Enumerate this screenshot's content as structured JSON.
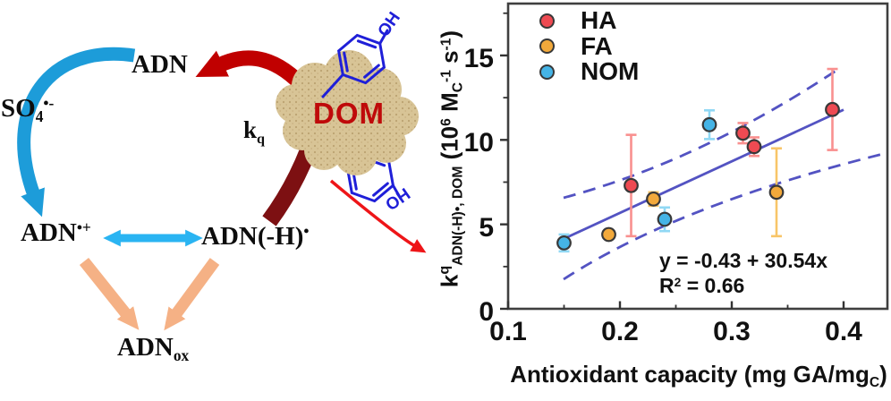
{
  "diagram": {
    "adn": {
      "base": "ADN"
    },
    "so4": {
      "base": "SO",
      "sub": "4",
      "sup": "•-"
    },
    "kq": {
      "base": "k",
      "sub": "q"
    },
    "adn_radical_cation": {
      "base": "ADN",
      "sup": "•+"
    },
    "adn_minus_h": {
      "base": "ADN(-H)",
      "sup": "•"
    },
    "adn_ox": {
      "base": "ADN",
      "sub": "ox"
    },
    "dom": "DOM",
    "oh_top": "OH",
    "oh_bottom": "OH",
    "colors": {
      "cycle_blue": "#1d9cd9",
      "arrow_red": "#c00000",
      "arrow_darkred": "#7d1012",
      "resonance_cyan": "#2ab4f2",
      "decay_orange": "#f5b185",
      "pointer_red": "#ee1518",
      "phenol_blue": "#1f1fd8",
      "dom_cloud_tan": "#d8c496",
      "dom_text_red": "#bf0a0a"
    }
  },
  "chart_data": {
    "type": "scatter",
    "title": "",
    "xlabel_parts": {
      "base": "Antioxidant capacity (mg GA/mg",
      "sub": "C",
      "end": ")"
    },
    "ylabel_parts": {
      "p1": "k",
      "p1_sup": "q",
      "p1_sub": "ADN(-H)•, DOM",
      "p2": " (10",
      "p2_sup": "6",
      "p3": " M",
      "p3_sub": "C",
      "p3_sup": "-1",
      "p4": " s",
      "p4_sup": "-1",
      "p5": ")"
    },
    "xlim": [
      0.1,
      0.44
    ],
    "ylim": [
      0,
      18.1
    ],
    "grid": false,
    "legend_position": "top-left",
    "x_ticks": [
      0.1,
      0.2,
      0.3,
      0.4
    ],
    "x_minor_ticks": [
      0.15,
      0.25,
      0.35
    ],
    "y_ticks": [
      0,
      5,
      10,
      15
    ],
    "y_minor_ticks": [
      2.5,
      7.5,
      12.5,
      17.5
    ],
    "series": [
      {
        "name": "HA",
        "color": "#ee4a52",
        "bar_color": "#f9908f",
        "points": [
          [
            0.21,
            7.3,
            3.0
          ],
          [
            0.31,
            10.4,
            0.6
          ],
          [
            0.32,
            9.6,
            0.55
          ],
          [
            0.39,
            11.8,
            2.4
          ]
        ]
      },
      {
        "name": "FA",
        "color": "#f2a93b",
        "bar_color": "#f8c568",
        "points": [
          [
            0.19,
            4.4,
            0
          ],
          [
            0.23,
            6.5,
            0.4
          ],
          [
            0.34,
            6.9,
            2.6
          ]
        ]
      },
      {
        "name": "NOM",
        "color": "#45b4e6",
        "bar_color": "#90d8f4",
        "points": [
          [
            0.15,
            3.9,
            0.5
          ],
          [
            0.24,
            5.3,
            0.7
          ],
          [
            0.28,
            10.9,
            0.85
          ]
        ]
      }
    ],
    "fit": {
      "equation": "y = -0.43 + 30.54x",
      "r2_base": "R",
      "r2_sup": "2",
      "r2_tail": " = 0.66",
      "intercept": -0.43,
      "slope": 30.54,
      "x_range": [
        0.15,
        0.4
      ],
      "line_color": "#5353c2",
      "band_style": "dashed"
    }
  }
}
